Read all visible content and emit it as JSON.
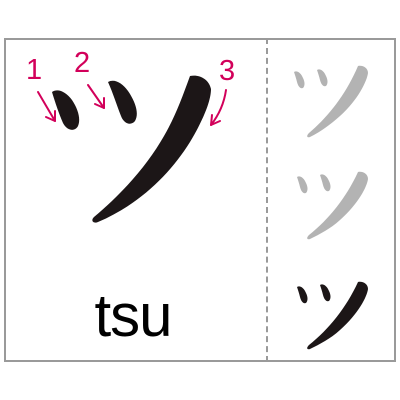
{
  "card": {
    "character": "ツ",
    "romaji": "tsu",
    "stroke_numbers": [
      "1",
      "2",
      "3"
    ],
    "colors": {
      "stroke_number": "#d2005a",
      "glyph": "#1c1617",
      "frame": "#9a9a9a",
      "trace_guide": "#b3b3b3"
    },
    "practice_rows": [
      {
        "step": "trace",
        "color": "#b3b3b3"
      },
      {
        "step": "trace",
        "color": "#b3b3b3"
      },
      {
        "step": "final",
        "color": "#1c1617"
      }
    ]
  }
}
